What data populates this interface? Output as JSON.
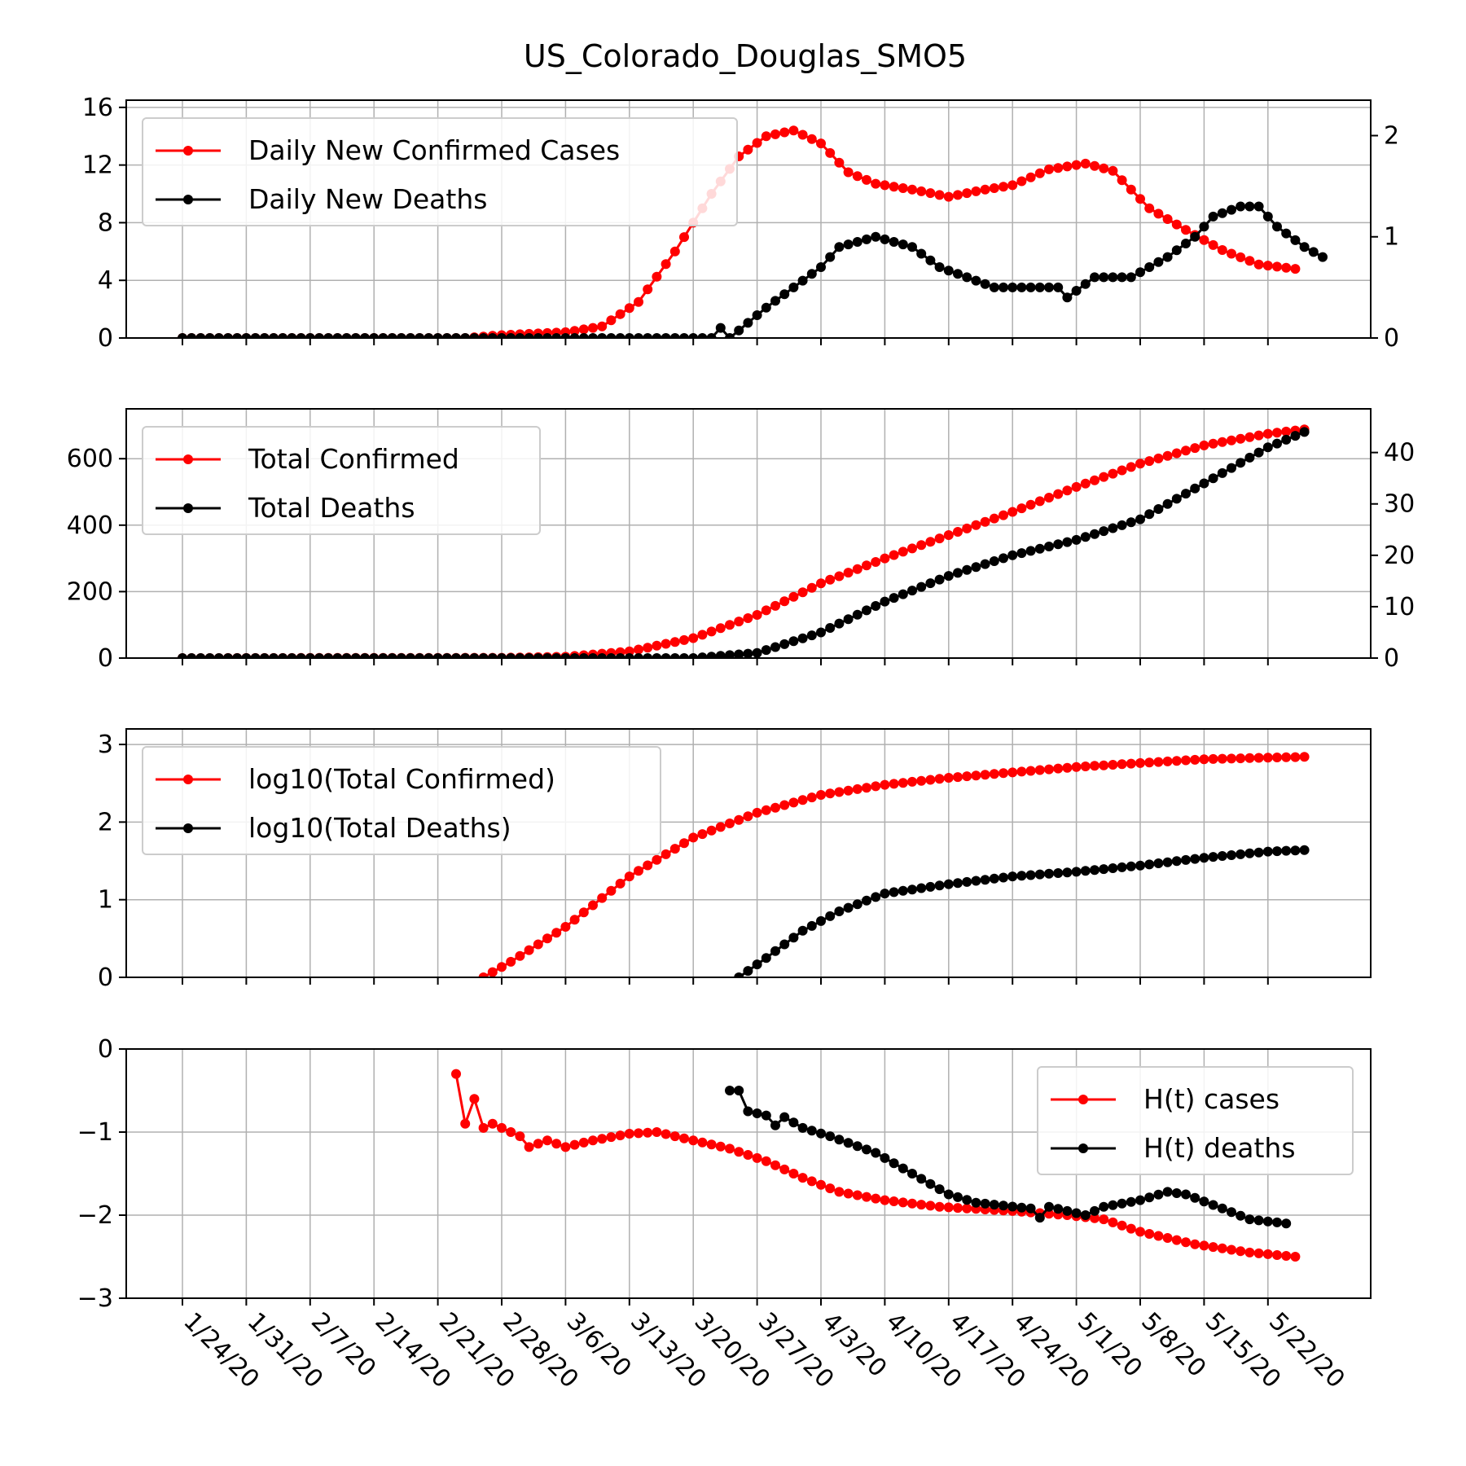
{
  "title": "US_Colorado_Douglas_SMO5",
  "colors": {
    "cases": "#ff0000",
    "deaths": "#000000",
    "grid": "#b0b0b0"
  },
  "x_axis": {
    "start_date": "1/22/20",
    "tick_labels": [
      "1/24/20",
      "1/31/20",
      "2/7/20",
      "2/14/20",
      "2/21/20",
      "2/28/20",
      "3/6/20",
      "3/13/20",
      "3/20/20",
      "3/27/20",
      "4/3/20",
      "4/10/20",
      "4/17/20",
      "4/24/20",
      "5/1/20",
      "5/8/20",
      "5/15/20",
      "5/22/20"
    ]
  },
  "chart_data": [
    {
      "type": "line",
      "panel": 1,
      "title": "US_Colorado_Douglas_SMO5",
      "grid": true,
      "legend_placement": "upper-left",
      "ylim_left": [
        0,
        16.5
      ],
      "ylim_right": [
        0,
        2.35
      ],
      "yticks_left": [
        "0",
        "4",
        "8",
        "12",
        "16"
      ],
      "yticks_right": [
        "0",
        "1",
        "2"
      ],
      "series": [
        {
          "name": "Daily New Confirmed Cases",
          "axis": "left",
          "color": "#ff0000",
          "points": [
            [
              "1/24/20",
              0
            ],
            [
              "2/24/20",
              0
            ],
            [
              "2/28/20",
              0.2
            ],
            [
              "3/6/20",
              0.4
            ],
            [
              "3/10/20",
              0.8
            ],
            [
              "3/14/20",
              2.5
            ],
            [
              "3/18/20",
              6
            ],
            [
              "3/22/20",
              10
            ],
            [
              "3/25/20",
              12.6
            ],
            [
              "3/28/20",
              14
            ],
            [
              "3/31/20",
              14.4
            ],
            [
              "4/3/20",
              13.5
            ],
            [
              "4/6/20",
              11.5
            ],
            [
              "4/9/20",
              10.7
            ],
            [
              "4/13/20",
              10.3
            ],
            [
              "4/17/20",
              9.8
            ],
            [
              "4/21/20",
              10.3
            ],
            [
              "4/24/20",
              10.6
            ],
            [
              "4/28/20",
              11.7
            ],
            [
              "5/2/20",
              12.1
            ],
            [
              "5/5/20",
              11.6
            ],
            [
              "5/9/20",
              9
            ],
            [
              "5/13/20",
              7.5
            ],
            [
              "5/17/20",
              6.1
            ],
            [
              "5/21/20",
              5.1
            ],
            [
              "5/25/20",
              4.8
            ]
          ]
        },
        {
          "name": "Daily New Deaths",
          "axis": "right",
          "color": "#000000",
          "points": [
            [
              "1/24/20",
              0
            ],
            [
              "3/22/20",
              0
            ],
            [
              "3/23/20",
              0.1
            ],
            [
              "3/24/20",
              0
            ],
            [
              "3/28/20",
              0.3
            ],
            [
              "3/31/20",
              0.5
            ],
            [
              "4/3/20",
              0.7
            ],
            [
              "4/5/20",
              0.9
            ],
            [
              "4/9/20",
              1
            ],
            [
              "4/13/20",
              0.9
            ],
            [
              "4/16/20",
              0.7
            ],
            [
              "4/19/20",
              0.6
            ],
            [
              "4/22/20",
              0.5
            ],
            [
              "4/29/20",
              0.5
            ],
            [
              "4/30/20",
              0.4
            ],
            [
              "5/3/20",
              0.6
            ],
            [
              "5/7/20",
              0.6
            ],
            [
              "5/11/20",
              0.8
            ],
            [
              "5/14/20",
              1
            ],
            [
              "5/16/20",
              1.2
            ],
            [
              "5/19/20",
              1.3
            ],
            [
              "5/21/20",
              1.3
            ],
            [
              "5/23/20",
              1.1
            ],
            [
              "5/26/20",
              0.9
            ],
            [
              "5/28/20",
              0.8
            ]
          ]
        }
      ]
    },
    {
      "type": "line",
      "panel": 2,
      "grid": true,
      "legend_placement": "upper-left",
      "ylim_left": [
        0,
        750
      ],
      "ylim_right": [
        0,
        48.5
      ],
      "yticks_left": [
        "0",
        "200",
        "400",
        "600"
      ],
      "yticks_right": [
        "0",
        "10",
        "20",
        "30",
        "40"
      ],
      "series": [
        {
          "name": "Total Confirmed",
          "axis": "left",
          "color": "#ff0000",
          "points": [
            [
              "1/24/20",
              0
            ],
            [
              "2/28/20",
              1
            ],
            [
              "3/6/20",
              4
            ],
            [
              "3/13/20",
              20
            ],
            [
              "3/20/20",
              60
            ],
            [
              "3/27/20",
              130
            ],
            [
              "4/3/20",
              225
            ],
            [
              "4/10/20",
              300
            ],
            [
              "4/17/20",
              370
            ],
            [
              "4/24/20",
              440
            ],
            [
              "5/1/20",
              515
            ],
            [
              "5/8/20",
              585
            ],
            [
              "5/15/20",
              640
            ],
            [
              "5/22/20",
              675
            ],
            [
              "5/26/20",
              688
            ]
          ]
        },
        {
          "name": "Total Deaths",
          "axis": "right",
          "color": "#000000",
          "points": [
            [
              "1/24/20",
              0
            ],
            [
              "3/20/20",
              0
            ],
            [
              "3/27/20",
              1
            ],
            [
              "4/3/20",
              5
            ],
            [
              "4/10/20",
              11
            ],
            [
              "4/17/20",
              16
            ],
            [
              "4/24/20",
              20
            ],
            [
              "5/1/20",
              23
            ],
            [
              "5/8/20",
              27
            ],
            [
              "5/15/20",
              34
            ],
            [
              "5/22/20",
              41
            ],
            [
              "5/26/20",
              44
            ]
          ]
        }
      ]
    },
    {
      "type": "line",
      "panel": 3,
      "grid": true,
      "legend_placement": "upper-left",
      "ylim": [
        0,
        3.2
      ],
      "yticks": [
        "0",
        "1",
        "2",
        "3"
      ],
      "series": [
        {
          "name": "log10(Total Confirmed)",
          "color": "#ff0000",
          "points": [
            [
              "2/26/20",
              0
            ],
            [
              "2/29/20",
              0.2
            ],
            [
              "3/6/20",
              0.65
            ],
            [
              "3/13/20",
              1.3
            ],
            [
              "3/20/20",
              1.8
            ],
            [
              "3/27/20",
              2.12
            ],
            [
              "4/3/20",
              2.35
            ],
            [
              "4/10/20",
              2.48
            ],
            [
              "4/17/20",
              2.57
            ],
            [
              "4/24/20",
              2.64
            ],
            [
              "5/1/20",
              2.71
            ],
            [
              "5/8/20",
              2.76
            ],
            [
              "5/15/20",
              2.81
            ],
            [
              "5/22/20",
              2.83
            ],
            [
              "5/26/20",
              2.84
            ]
          ]
        },
        {
          "name": "log10(Total Deaths)",
          "color": "#000000",
          "points": [
            [
              "3/25/20",
              0
            ],
            [
              "3/28/20",
              0.25
            ],
            [
              "4/1/20",
              0.6
            ],
            [
              "4/5/20",
              0.85
            ],
            [
              "4/10/20",
              1.08
            ],
            [
              "4/17/20",
              1.2
            ],
            [
              "4/24/20",
              1.3
            ],
            [
              "5/1/20",
              1.36
            ],
            [
              "5/8/20",
              1.44
            ],
            [
              "5/15/20",
              1.54
            ],
            [
              "5/22/20",
              1.62
            ],
            [
              "5/26/20",
              1.64
            ]
          ]
        }
      ]
    },
    {
      "type": "line",
      "panel": 4,
      "grid": true,
      "legend_placement": "upper-right",
      "ylim": [
        -3,
        0
      ],
      "yticks": [
        "0",
        "−1",
        "−2",
        "−3"
      ],
      "series": [
        {
          "name": "H(t) cases",
          "color": "#ff0000",
          "points": [
            [
              "2/23/20",
              -0.3
            ],
            [
              "2/24/20",
              -0.9
            ],
            [
              "2/25/20",
              -0.6
            ],
            [
              "2/26/20",
              -0.95
            ],
            [
              "2/27/20",
              -0.9
            ],
            [
              "3/1/20",
              -1.05
            ],
            [
              "3/2/20",
              -1.18
            ],
            [
              "3/4/20",
              -1.1
            ],
            [
              "3/6/20",
              -1.18
            ],
            [
              "3/9/20",
              -1.1
            ],
            [
              "3/13/20",
              -1.02
            ],
            [
              "3/16/20",
              -1.0
            ],
            [
              "3/20/20",
              -1.1
            ],
            [
              "3/24/20",
              -1.2
            ],
            [
              "3/28/20",
              -1.35
            ],
            [
              "4/1/20",
              -1.55
            ],
            [
              "4/5/20",
              -1.72
            ],
            [
              "4/10/20",
              -1.82
            ],
            [
              "4/16/20",
              -1.9
            ],
            [
              "4/24/20",
              -1.95
            ],
            [
              "4/30/20",
              -2.0
            ],
            [
              "5/4/20",
              -2.05
            ],
            [
              "5/8/20",
              -2.2
            ],
            [
              "5/14/20",
              -2.35
            ],
            [
              "5/20/20",
              -2.45
            ],
            [
              "5/25/20",
              -2.5
            ]
          ]
        },
        {
          "name": "H(t) deaths",
          "color": "#000000",
          "points": [
            [
              "3/24/20",
              -0.5
            ],
            [
              "3/25/20",
              -0.5
            ],
            [
              "3/26/20",
              -0.75
            ],
            [
              "3/28/20",
              -0.8
            ],
            [
              "3/29/20",
              -0.92
            ],
            [
              "3/30/20",
              -0.82
            ],
            [
              "4/1/20",
              -0.95
            ],
            [
              "4/4/20",
              -1.05
            ],
            [
              "4/9/20",
              -1.25
            ],
            [
              "4/13/20",
              -1.5
            ],
            [
              "4/17/20",
              -1.75
            ],
            [
              "4/20/20",
              -1.85
            ],
            [
              "4/26/20",
              -1.92
            ],
            [
              "4/27/20",
              -2.03
            ],
            [
              "4/28/20",
              -1.9
            ],
            [
              "5/2/20",
              -2.0
            ],
            [
              "5/4/20",
              -1.9
            ],
            [
              "5/8/20",
              -1.82
            ],
            [
              "5/11/20",
              -1.72
            ],
            [
              "5/13/20",
              -1.75
            ],
            [
              "5/17/20",
              -1.92
            ],
            [
              "5/20/20",
              -2.05
            ],
            [
              "5/24/20",
              -2.1
            ]
          ]
        }
      ]
    }
  ]
}
